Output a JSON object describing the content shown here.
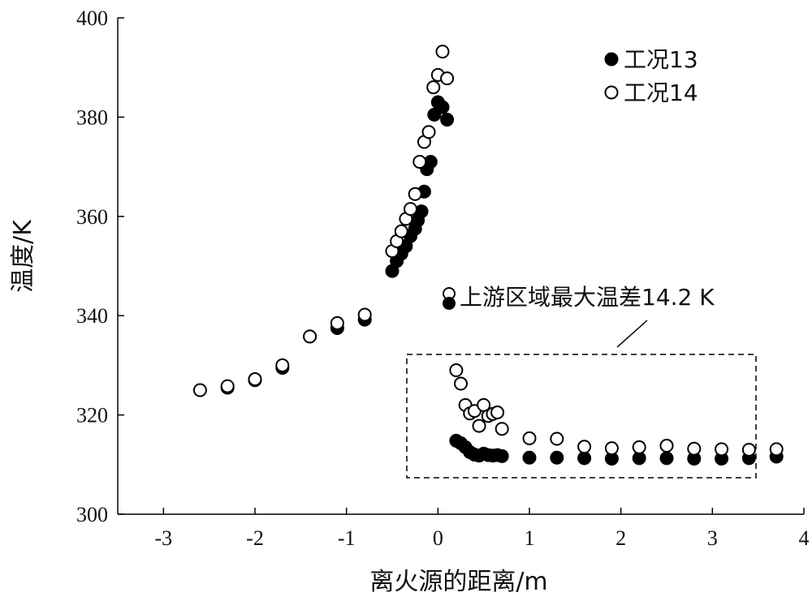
{
  "chart_data": {
    "type": "scatter",
    "xlabel": "离火源的距离/m",
    "ylabel": "温度/K",
    "xlim": [
      -3.5,
      4
    ],
    "ylim": [
      300,
      400
    ],
    "xticks": [
      -3,
      -2,
      -1,
      0,
      1,
      2,
      3,
      4
    ],
    "yticks": [
      300,
      320,
      340,
      360,
      380,
      400
    ],
    "legend_position": "top-right",
    "annotation": "上游区域最大温差14.2 K",
    "series": [
      {
        "name": "工况13",
        "marker": "filled-circle",
        "color": "#000000",
        "points": [
          [
            -2.3,
            325.5
          ],
          [
            -2.0,
            327.0
          ],
          [
            -1.7,
            329.5
          ],
          [
            -1.4,
            335.8
          ],
          [
            -1.1,
            337.5
          ],
          [
            -0.8,
            339.2
          ],
          [
            -0.5,
            349.0
          ],
          [
            -0.45,
            351.0
          ],
          [
            -0.4,
            352.5
          ],
          [
            -0.35,
            354.0
          ],
          [
            -0.3,
            356.0
          ],
          [
            -0.25,
            357.5
          ],
          [
            -0.22,
            359.2
          ],
          [
            -0.18,
            361.0
          ],
          [
            -0.15,
            365.0
          ],
          [
            -0.12,
            369.5
          ],
          [
            -0.08,
            371.0
          ],
          [
            -0.04,
            380.5
          ],
          [
            0.0,
            383.0
          ],
          [
            0.05,
            382.0
          ],
          [
            0.1,
            379.5
          ],
          [
            0.2,
            314.8
          ],
          [
            0.25,
            314.3
          ],
          [
            0.3,
            313.5
          ],
          [
            0.35,
            312.5
          ],
          [
            0.4,
            312.0
          ],
          [
            0.45,
            311.8
          ],
          [
            0.5,
            312.2
          ],
          [
            0.55,
            311.9
          ],
          [
            0.6,
            311.8
          ],
          [
            0.65,
            311.9
          ],
          [
            0.7,
            311.7
          ],
          [
            1.0,
            311.4
          ],
          [
            1.3,
            311.4
          ],
          [
            1.6,
            311.3
          ],
          [
            1.9,
            311.2
          ],
          [
            2.2,
            311.3
          ],
          [
            2.5,
            311.3
          ],
          [
            2.8,
            311.2
          ],
          [
            3.1,
            311.2
          ],
          [
            3.4,
            311.3
          ],
          [
            3.7,
            311.6
          ]
        ]
      },
      {
        "name": "工况14",
        "marker": "open-circle",
        "color": "#000000",
        "points": [
          [
            -2.6,
            325.0
          ],
          [
            -2.3,
            325.8
          ],
          [
            -2.0,
            327.2
          ],
          [
            -1.7,
            330.0
          ],
          [
            -1.4,
            335.8
          ],
          [
            -1.1,
            338.5
          ],
          [
            -0.8,
            340.2
          ],
          [
            -0.5,
            353.0
          ],
          [
            -0.45,
            355.0
          ],
          [
            -0.4,
            357.0
          ],
          [
            -0.35,
            359.5
          ],
          [
            -0.3,
            361.5
          ],
          [
            -0.25,
            364.5
          ],
          [
            -0.2,
            371.0
          ],
          [
            -0.15,
            375.0
          ],
          [
            -0.1,
            377.0
          ],
          [
            -0.05,
            386.0
          ],
          [
            0.0,
            388.5
          ],
          [
            0.05,
            393.2
          ],
          [
            0.1,
            387.8
          ],
          [
            0.2,
            329.0
          ],
          [
            0.25,
            326.3
          ],
          [
            0.3,
            322.0
          ],
          [
            0.35,
            320.3
          ],
          [
            0.4,
            320.8
          ],
          [
            0.45,
            317.8
          ],
          [
            0.5,
            322.0
          ],
          [
            0.55,
            319.8
          ],
          [
            0.6,
            320.2
          ],
          [
            0.65,
            320.5
          ],
          [
            0.7,
            317.2
          ],
          [
            1.0,
            315.3
          ],
          [
            1.3,
            315.2
          ],
          [
            1.6,
            313.6
          ],
          [
            1.9,
            313.3
          ],
          [
            2.2,
            313.5
          ],
          [
            2.5,
            313.8
          ],
          [
            2.8,
            313.2
          ],
          [
            3.1,
            313.1
          ],
          [
            3.4,
            313.0
          ],
          [
            3.7,
            313.1
          ]
        ]
      }
    ]
  }
}
